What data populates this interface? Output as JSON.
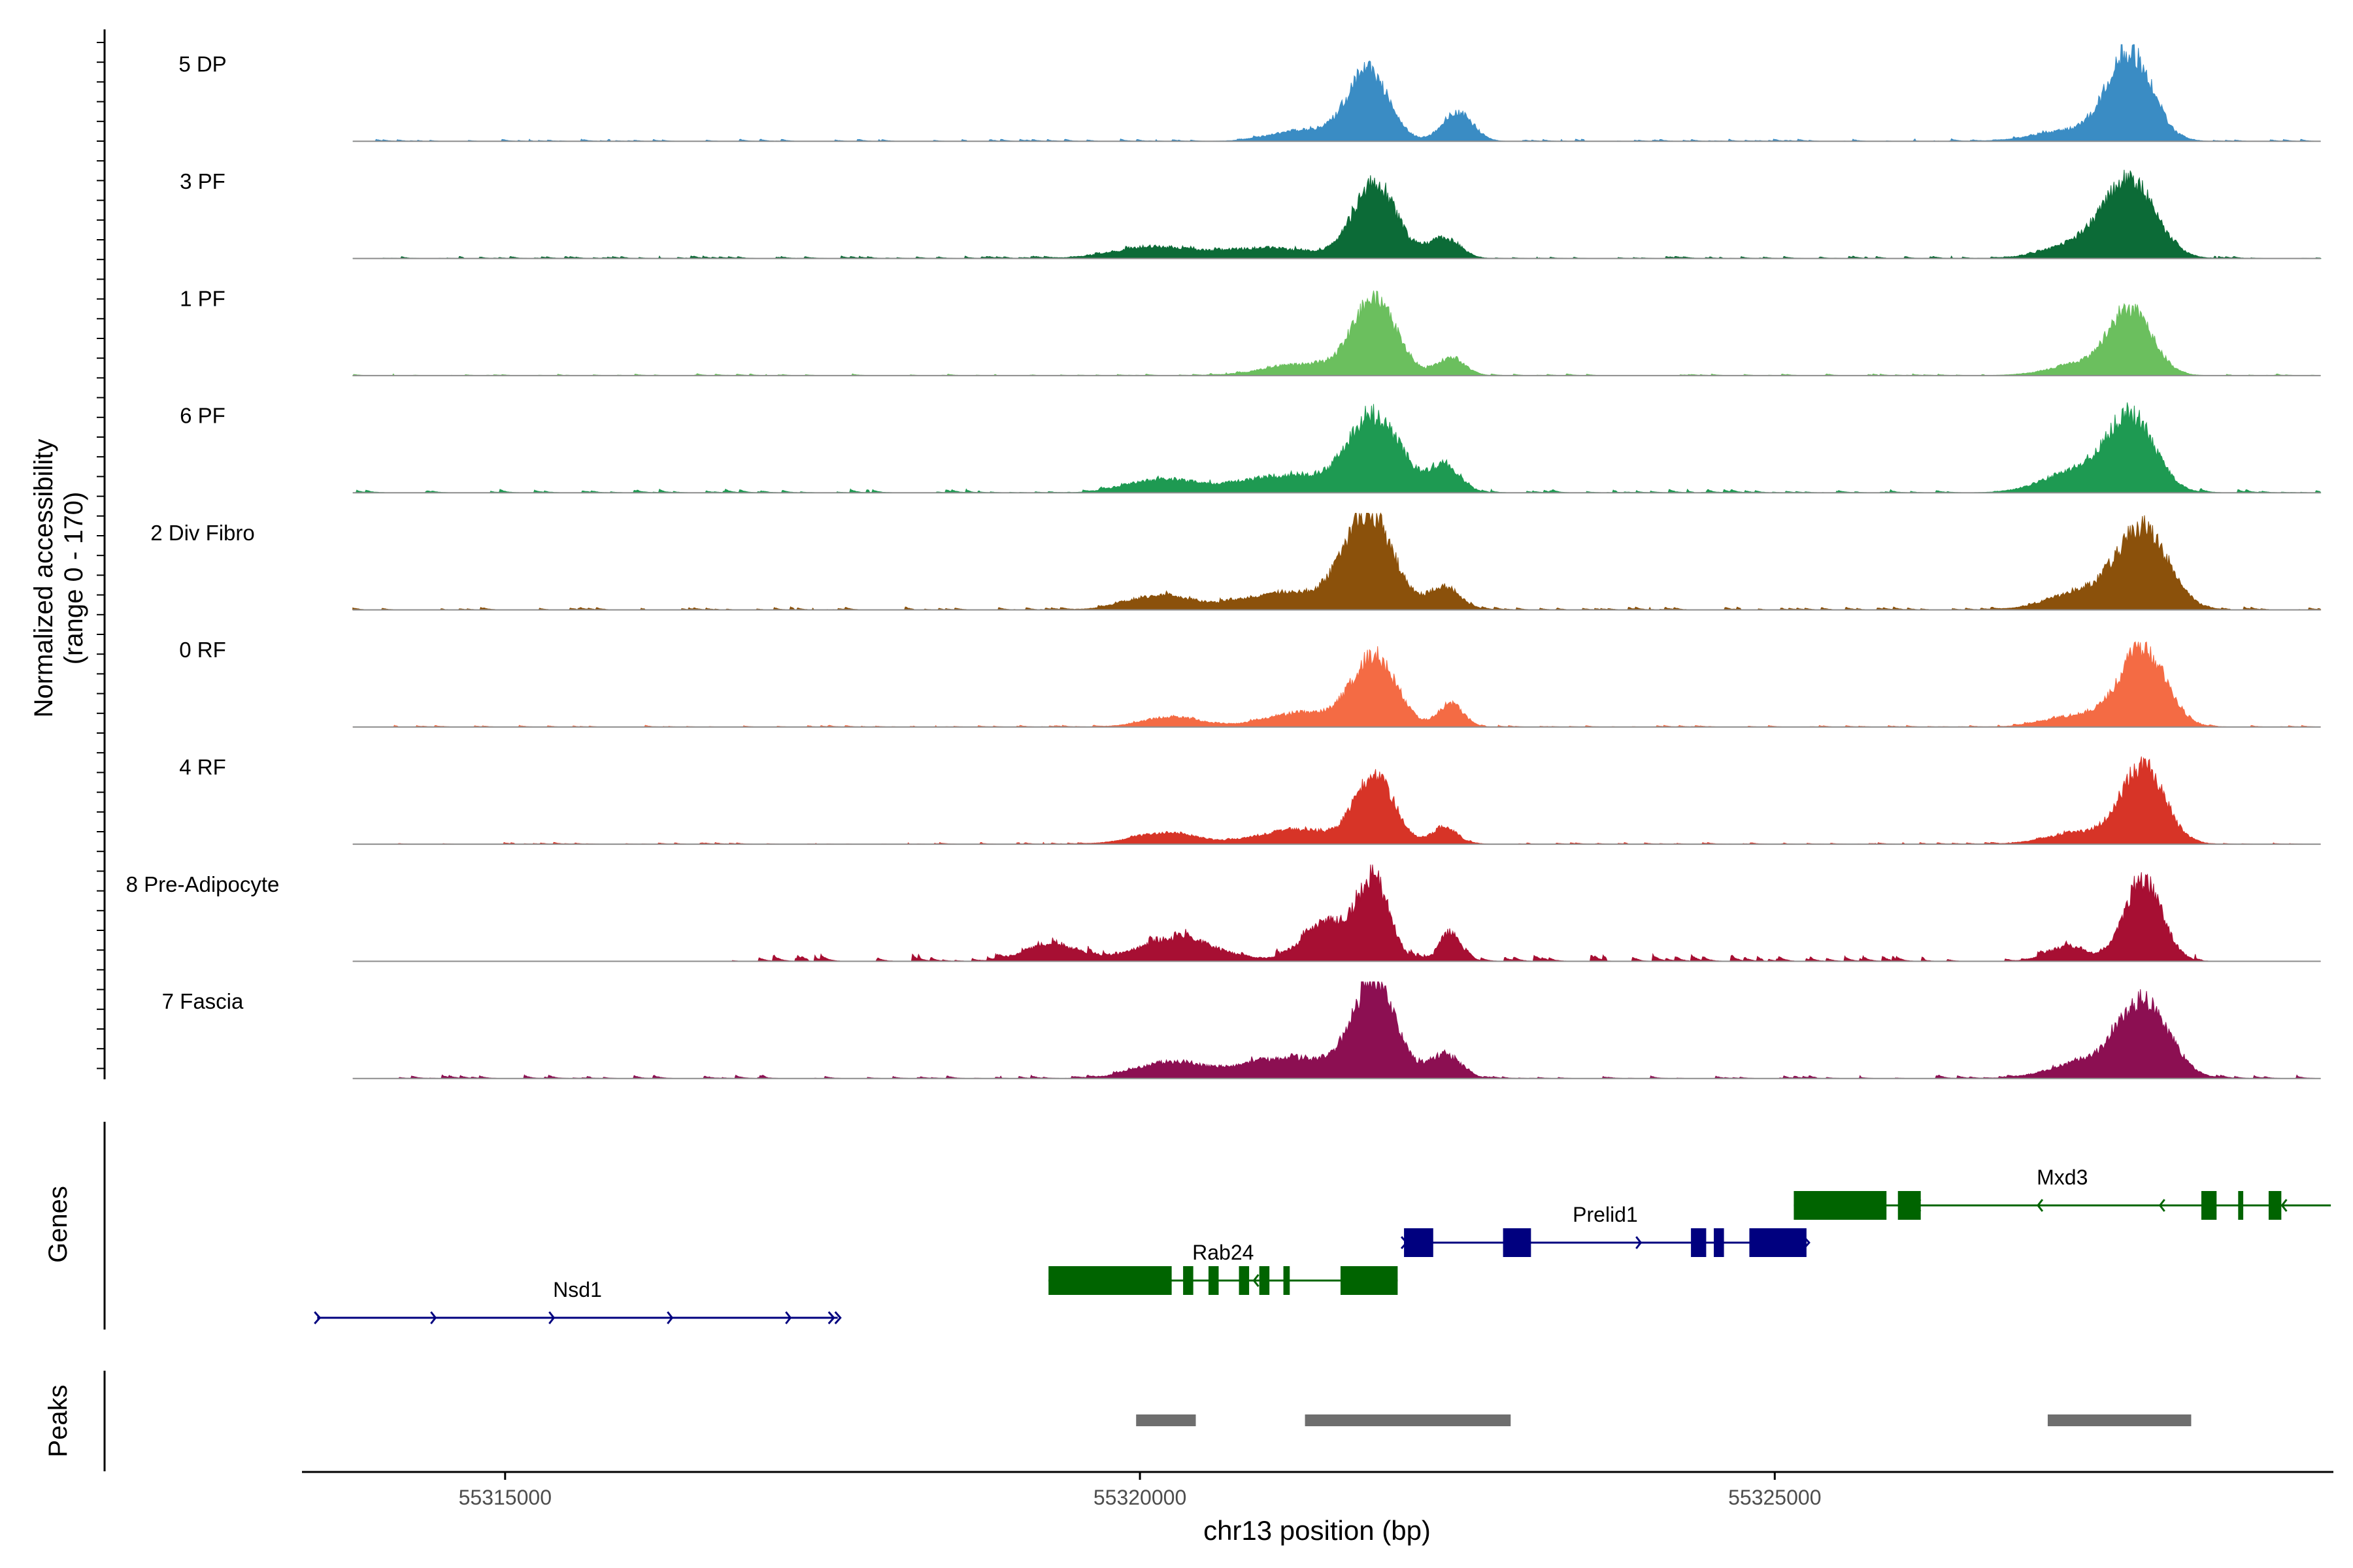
{
  "chart_data": {
    "type": "area",
    "title": "",
    "chromosome": "chr13",
    "xlabel": "chr13 position (bp)",
    "ylabel_line1": "Normalized accessibility",
    "ylabel_line2": "(range 0 - 170)",
    "y_range": [
      0,
      170
    ],
    "x_range": [
      55313400,
      55329400
    ],
    "x_ticks": [
      55315000,
      55320000,
      55325000
    ],
    "x_tick_labels": [
      "55315000",
      "55320000",
      "55325000"
    ],
    "track_region": [
      55313800,
      55329300
    ],
    "tracks": [
      {
        "name": "5 DP",
        "color": "#3A8CC4",
        "peaks": [
          [
            55321800,
            120,
            160
          ],
          [
            55322500,
            50,
            120
          ],
          [
            55321300,
            20,
            250
          ],
          [
            55327800,
            150,
            170
          ],
          [
            55327400,
            20,
            300
          ]
        ],
        "noise": 4,
        "noise_region": [
          55313800,
          55329300
        ],
        "seed": 11
      },
      {
        "name": "3 PF",
        "color": "#0C6B37",
        "peaks": [
          [
            55321850,
            130,
            170
          ],
          [
            55322400,
            35,
            120
          ],
          [
            55320100,
            20,
            300
          ],
          [
            55321000,
            18,
            350
          ],
          [
            55327800,
            130,
            200
          ],
          [
            55327400,
            25,
            250
          ]
        ],
        "noise": 4,
        "noise_region": [
          55313800,
          55329300
        ],
        "seed": 23
      },
      {
        "name": "1 PF",
        "color": "#6BBF5E",
        "peaks": [
          [
            55321850,
            130,
            170
          ],
          [
            55322450,
            30,
            110
          ],
          [
            55321300,
            20,
            300
          ],
          [
            55327800,
            115,
            170
          ],
          [
            55327400,
            18,
            250
          ]
        ],
        "noise": 3,
        "noise_region": [
          55313800,
          55329300
        ],
        "seed": 37
      },
      {
        "name": "6 PF",
        "color": "#1E9A52",
        "peaks": [
          [
            55321850,
            130,
            200
          ],
          [
            55322400,
            45,
            120
          ],
          [
            55320150,
            22,
            250
          ],
          [
            55321150,
            30,
            400
          ],
          [
            55327800,
            130,
            190
          ],
          [
            55327350,
            35,
            250
          ]
        ],
        "noise": 6,
        "noise_region": [
          55313800,
          55329300
        ],
        "seed": 41
      },
      {
        "name": "2 Div Fibro",
        "color": "#8B510B",
        "peaks": [
          [
            55321800,
            165,
            190
          ],
          [
            55322400,
            40,
            120
          ],
          [
            55320150,
            25,
            250
          ],
          [
            55321150,
            30,
            350
          ],
          [
            55327900,
            140,
            200
          ],
          [
            55327400,
            30,
            250
          ]
        ],
        "noise": 5,
        "noise_region": [
          55313800,
          55329300
        ],
        "seed": 53
      },
      {
        "name": "0 RF",
        "color": "#F46B44",
        "peaks": [
          [
            55321850,
            120,
            170
          ],
          [
            55322450,
            40,
            100
          ],
          [
            55320250,
            18,
            220
          ],
          [
            55321300,
            25,
            300
          ],
          [
            55327900,
            135,
            180
          ],
          [
            55327400,
            20,
            250
          ]
        ],
        "noise": 3,
        "noise_region": [
          55313800,
          55329300
        ],
        "seed": 67
      },
      {
        "name": "4 RF",
        "color": "#D73427",
        "peaks": [
          [
            55321850,
            120,
            150
          ],
          [
            55322400,
            30,
            100
          ],
          [
            55320200,
            20,
            250
          ],
          [
            55321250,
            25,
            300
          ],
          [
            55327900,
            135,
            170
          ],
          [
            55327400,
            20,
            250
          ]
        ],
        "noise": 3,
        "noise_region": [
          55313800,
          55329300
        ],
        "seed": 71
      },
      {
        "name": "8 Pre-Adipocyte",
        "color": "#A70F33",
        "peaks": [
          [
            55321850,
            130,
            120
          ],
          [
            55321500,
            70,
            200
          ],
          [
            55322450,
            50,
            80
          ],
          [
            55320300,
            40,
            300
          ],
          [
            55319300,
            30,
            200
          ],
          [
            55327900,
            140,
            150
          ],
          [
            55327300,
            25,
            150
          ]
        ],
        "noise": 12,
        "noise_region": [
          55316500,
          55328500
        ],
        "seed": 83
      },
      {
        "name": "7 Fascia",
        "color": "#8C0F52",
        "peaks": [
          [
            55321850,
            165,
            160
          ],
          [
            55322400,
            40,
            120
          ],
          [
            55320200,
            25,
            250
          ],
          [
            55321200,
            35,
            450
          ],
          [
            55327900,
            135,
            200
          ],
          [
            55327400,
            25,
            250
          ]
        ],
        "noise": 6,
        "noise_region": [
          55313800,
          55329300
        ],
        "seed": 97
      }
    ],
    "genes_label": "Genes",
    "genes": [
      {
        "name": "Nsd1",
        "strand": "+",
        "color": "#00007F",
        "row": 3,
        "start": 55313520,
        "end": 55317620,
        "exons": []
      },
      {
        "name": "Rab24",
        "strand": "-",
        "color": "#006400",
        "row": 2,
        "start": 55319280,
        "end": 55322030,
        "exons": [
          [
            55319280,
            55320250
          ],
          [
            55320340,
            55320420
          ],
          [
            55320540,
            55320620
          ],
          [
            55320780,
            55320860
          ],
          [
            55320940,
            55321020
          ],
          [
            55321130,
            55321180
          ],
          [
            55321580,
            55322030
          ]
        ]
      },
      {
        "name": "Prelid1",
        "strand": "+",
        "color": "#00007F",
        "row": 1,
        "start": 55322080,
        "end": 55325250,
        "exons": [
          [
            55322080,
            55322310
          ],
          [
            55322860,
            55323080
          ],
          [
            55324340,
            55324460
          ],
          [
            55324520,
            55324600
          ],
          [
            55324800,
            55325250
          ]
        ]
      },
      {
        "name": "Mxd3",
        "strand": "-",
        "color": "#006400",
        "row": 0,
        "start": 55325150,
        "end": 55329380,
        "exons": [
          [
            55325150,
            55325880
          ],
          [
            55325970,
            55326150
          ],
          [
            55328360,
            55328480
          ],
          [
            55328650,
            55328690
          ],
          [
            55328890,
            55328990
          ]
        ]
      }
    ],
    "peaks_label": "Peaks",
    "peak_regions": [
      [
        55319970,
        55320440
      ],
      [
        55321300,
        55322920
      ],
      [
        55327150,
        55328280
      ]
    ],
    "peak_color": "#6E6E6E"
  }
}
